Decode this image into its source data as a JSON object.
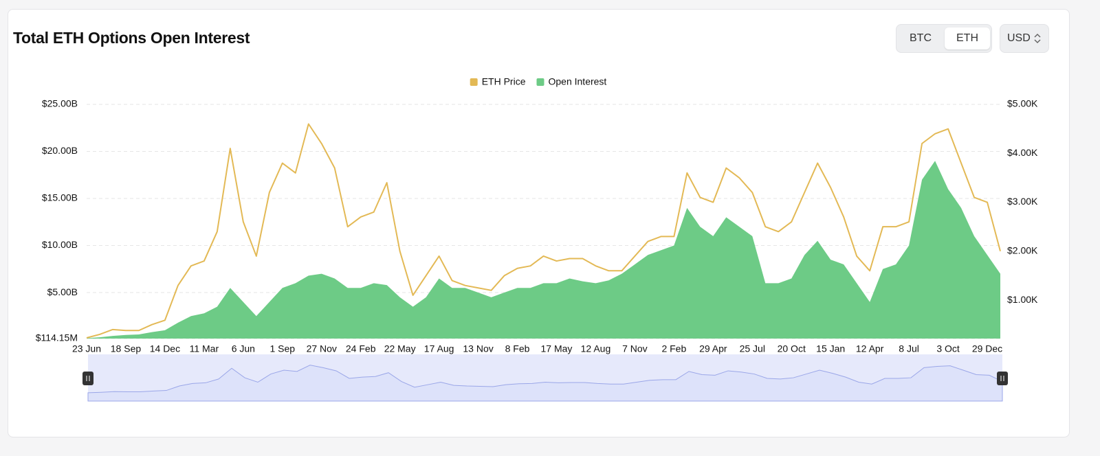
{
  "controls": {
    "tabs": [
      "BTC",
      "ETH"
    ],
    "currency": "USD"
  },
  "chart_data": {
    "type": "area-line",
    "title": "Total ETH Options Open Interest",
    "categories": [
      "23 Jun",
      null,
      null,
      "18 Sep",
      null,
      null,
      "14 Dec",
      null,
      null,
      "11 Mar",
      null,
      null,
      "6 Jun",
      null,
      null,
      "1 Sep",
      null,
      null,
      "27 Nov",
      null,
      null,
      "24 Feb",
      null,
      null,
      "22 May",
      null,
      null,
      "17 Aug",
      null,
      null,
      "13 Nov",
      null,
      null,
      "8 Feb",
      null,
      null,
      "17 May",
      null,
      null,
      "12 Aug",
      null,
      null,
      "7 Nov",
      null,
      null,
      "2 Feb",
      null,
      null,
      "29 Apr",
      null,
      null,
      "25 Jul",
      null,
      null,
      "20 Oct",
      null,
      null,
      "15 Jan",
      null,
      null,
      "12 Apr",
      null,
      null,
      "8 Jul",
      null,
      null,
      "3 Oct",
      null,
      null,
      "29 Dec",
      null
    ],
    "series": [
      {
        "name": "ETH Price",
        "color": "#e3b955",
        "axis": "y2",
        "values": [
          230,
          300,
          400,
          380,
          380,
          500,
          590,
          1300,
          1700,
          1800,
          2400,
          4100,
          2600,
          1900,
          3200,
          3800,
          3600,
          4600,
          4200,
          3700,
          2500,
          2700,
          2800,
          3400,
          2000,
          1100,
          1500,
          1900,
          1400,
          1300,
          1250,
          1200,
          1500,
          1650,
          1700,
          1900,
          1800,
          1850,
          1850,
          1700,
          1600,
          1600,
          1900,
          2200,
          2300,
          2300,
          3600,
          3100,
          3000,
          3700,
          3500,
          3200,
          2500,
          2400,
          2600,
          3200,
          3800,
          3300,
          2700,
          1900,
          1600,
          2500,
          2500,
          2600,
          4200,
          4400,
          4500,
          3800,
          3100,
          3000,
          2000
        ]
      },
      {
        "name": "Open Interest",
        "color": "#6dcb86",
        "values": [
          150000000,
          250000000,
          400000000,
          500000000,
          550000000,
          800000000,
          1000000000,
          1800000000,
          2500000000,
          2800000000,
          3500000000,
          5500000000,
          4000000000,
          2500000000,
          4000000000,
          5500000000,
          6000000000,
          6800000000,
          7000000000,
          6500000000,
          5500000000,
          5500000000,
          6000000000,
          5800000000,
          4500000000,
          3500000000,
          4500000000,
          6500000000,
          5500000000,
          5500000000,
          5000000000,
          4500000000,
          5000000000,
          5500000000,
          5500000000,
          6000000000,
          6000000000,
          6500000000,
          6200000000,
          6000000000,
          6300000000,
          7000000000,
          8000000000,
          9000000000,
          9500000000,
          10000000000,
          14000000000,
          12000000000,
          11000000000,
          13000000000,
          12000000000,
          11000000000,
          6000000000,
          6000000000,
          6500000000,
          9000000000,
          10500000000,
          8500000000,
          8000000000,
          6000000000,
          4000000000,
          7500000000,
          8000000000,
          10000000000,
          17000000000,
          19000000000,
          16000000000,
          14000000000,
          11000000000,
          9000000000,
          7000000000
        ]
      }
    ],
    "ylim": [
      114150000,
      25000000000
    ],
    "yticks": [
      {
        "value": 114150000,
        "label": "$114.15M"
      },
      {
        "value": 5000000000,
        "label": "$5.00B"
      },
      {
        "value": 10000000000,
        "label": "$10.00B"
      },
      {
        "value": 15000000000,
        "label": "$15.00B"
      },
      {
        "value": 20000000000,
        "label": "$20.00B"
      },
      {
        "value": 25000000000,
        "label": "$25.00B"
      }
    ],
    "y2lim": [
      215,
      5000
    ],
    "y2ticks": [
      {
        "value": 1000,
        "label": "$1.00K"
      },
      {
        "value": 2000,
        "label": "$2.00K"
      },
      {
        "value": 3000,
        "label": "$3.00K"
      },
      {
        "value": 4000,
        "label": "$4.00K"
      },
      {
        "value": 5000,
        "label": "$5.00K"
      }
    ],
    "grid": true,
    "legend": "top"
  }
}
